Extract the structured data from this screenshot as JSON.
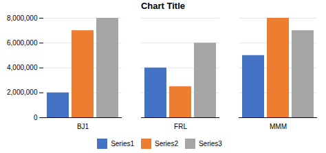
{
  "chart_data": {
    "type": "bar",
    "title": "Chart Title",
    "categories": [
      "BJ1",
      "FRL",
      "MMM"
    ],
    "series": [
      {
        "name": "Series1",
        "color": "#4472C4",
        "values": [
          2000000,
          4000000,
          5000000
        ]
      },
      {
        "name": "Series2",
        "color": "#ED7D31",
        "values": [
          7000000,
          2500000,
          8000000
        ]
      },
      {
        "name": "Series3",
        "color": "#A5A5A5",
        "values": [
          8000000,
          6000000,
          7000000
        ]
      }
    ],
    "ylim": [
      0,
      8000000
    ],
    "yticks": [
      0,
      {
        "value": 2000000,
        "label": "2,000,000"
      },
      {
        "value": 4000000,
        "label": "4,000,000"
      },
      {
        "value": 6000000,
        "label": "6,000,000"
      },
      {
        "value": 8000000,
        "label": "8,000,000"
      }
    ],
    "grid": true,
    "legend": "bottom"
  }
}
